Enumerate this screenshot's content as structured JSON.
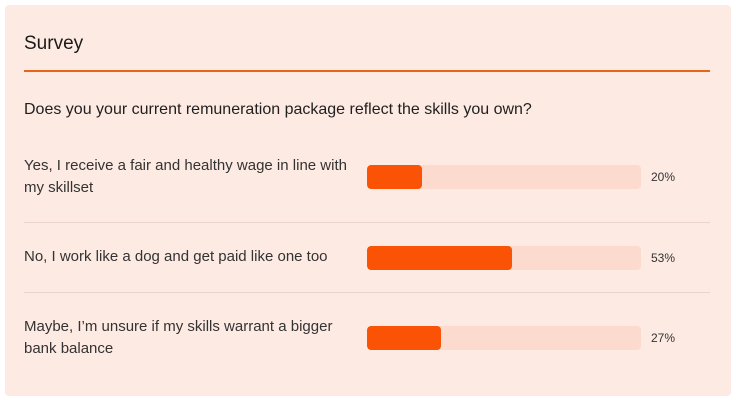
{
  "survey": {
    "title": "Survey",
    "question": "Does you your current remuneration package reflect the skills you own?",
    "accent_color": "#e8641a",
    "bar_color": "#fa5305",
    "track_color": "#fcdbce",
    "options": [
      {
        "label": "Yes, I receive a fair and healthy wage in line with my skillset",
        "percent_label": "20%",
        "value": 20
      },
      {
        "label": "No, I work like a dog and get paid like one too",
        "percent_label": "53%",
        "value": 53
      },
      {
        "label": "Maybe, I’m unsure if my skills warrant a bigger bank balance",
        "percent_label": "27%",
        "value": 27
      }
    ]
  }
}
